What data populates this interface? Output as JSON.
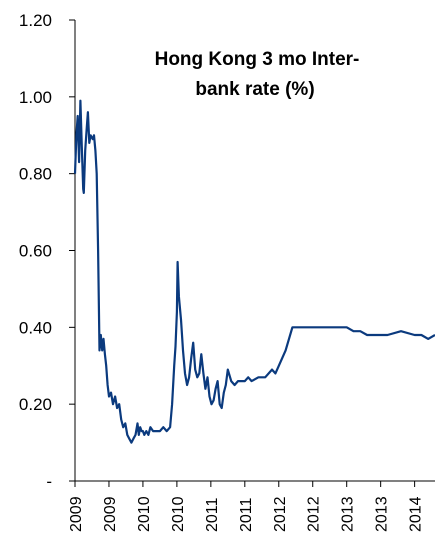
{
  "chart_data": {
    "type": "line",
    "title": [
      "Hong Kong 3 mo Inter-",
      "bank rate (%)"
    ],
    "ylim": [
      0,
      1.2
    ],
    "y_ticks": [
      {
        "value": 0,
        "label": "-"
      },
      {
        "value": 0.2,
        "label": "0.20"
      },
      {
        "value": 0.4,
        "label": "0.40"
      },
      {
        "value": 0.6,
        "label": "0.60"
      },
      {
        "value": 0.8,
        "label": "0.80"
      },
      {
        "value": 1.0,
        "label": "1.00"
      },
      {
        "value": 1.2,
        "label": "1.20"
      }
    ],
    "xlim": [
      2009.0,
      2014.3
    ],
    "x_ticks": [
      {
        "value": 2009.0,
        "label": "2009"
      },
      {
        "value": 2009.5,
        "label": "2009"
      },
      {
        "value": 2010.0,
        "label": "2010"
      },
      {
        "value": 2010.5,
        "label": "2010"
      },
      {
        "value": 2011.0,
        "label": "2011"
      },
      {
        "value": 2011.5,
        "label": "2011"
      },
      {
        "value": 2012.0,
        "label": "2012"
      },
      {
        "value": 2012.5,
        "label": "2012"
      },
      {
        "value": 2013.0,
        "label": "2013"
      },
      {
        "value": 2013.5,
        "label": "2013"
      },
      {
        "value": 2014.0,
        "label": "2014"
      }
    ],
    "grid": false,
    "color": "#0b3a7e",
    "series": [
      {
        "x": [
          2009.0,
          2009.02,
          2009.04,
          2009.06,
          2009.08,
          2009.1,
          2009.12,
          2009.13,
          2009.15,
          2009.17,
          2009.19,
          2009.21,
          2009.23,
          2009.26,
          2009.28,
          2009.3,
          2009.32,
          2009.34,
          2009.36,
          2009.38,
          2009.4,
          2009.42,
          2009.44,
          2009.46,
          2009.48,
          2009.5,
          2009.53,
          2009.56,
          2009.59,
          2009.62,
          2009.65,
          2009.68,
          2009.71,
          2009.74,
          2009.77,
          2009.8,
          2009.83,
          2009.86,
          2009.89,
          2009.92,
          2009.94,
          2009.96,
          2009.98,
          2010.0,
          2010.02,
          2010.05,
          2010.08,
          2010.11,
          2010.15,
          2010.2,
          2010.25,
          2010.3,
          2010.35,
          2010.4,
          2010.43,
          2010.46,
          2010.48,
          2010.5,
          2010.51,
          2010.53,
          2010.56,
          2010.59,
          2010.62,
          2010.65,
          2010.68,
          2010.71,
          2010.74,
          2010.77,
          2010.8,
          2010.83,
          2010.86,
          2010.89,
          2010.92,
          2010.95,
          2010.98,
          2011.01,
          2011.04,
          2011.07,
          2011.1,
          2011.13,
          2011.16,
          2011.19,
          2011.22,
          2011.25,
          2011.3,
          2011.35,
          2011.4,
          2011.45,
          2011.5,
          2011.55,
          2011.6,
          2011.7,
          2011.8,
          2011.9,
          2011.95,
          2012.0,
          2012.1,
          2012.2,
          2012.4,
          2012.6,
          2012.8,
          2013.0,
          2013.1,
          2013.2,
          2013.3,
          2013.4,
          2013.6,
          2013.8,
          2014.0,
          2014.1,
          2014.2,
          2014.3
        ],
        "values": [
          0.8,
          0.9,
          0.95,
          0.83,
          0.99,
          0.87,
          0.76,
          0.75,
          0.86,
          0.91,
          0.96,
          0.88,
          0.9,
          0.89,
          0.9,
          0.86,
          0.8,
          0.6,
          0.34,
          0.38,
          0.34,
          0.37,
          0.33,
          0.3,
          0.25,
          0.22,
          0.23,
          0.2,
          0.22,
          0.19,
          0.2,
          0.16,
          0.14,
          0.15,
          0.12,
          0.11,
          0.1,
          0.11,
          0.12,
          0.15,
          0.12,
          0.14,
          0.13,
          0.13,
          0.12,
          0.13,
          0.12,
          0.14,
          0.13,
          0.13,
          0.13,
          0.14,
          0.13,
          0.14,
          0.2,
          0.3,
          0.35,
          0.44,
          0.57,
          0.48,
          0.42,
          0.34,
          0.28,
          0.25,
          0.27,
          0.32,
          0.36,
          0.29,
          0.27,
          0.28,
          0.33,
          0.28,
          0.24,
          0.27,
          0.22,
          0.2,
          0.21,
          0.24,
          0.26,
          0.2,
          0.19,
          0.23,
          0.25,
          0.29,
          0.26,
          0.25,
          0.26,
          0.26,
          0.26,
          0.27,
          0.26,
          0.27,
          0.27,
          0.29,
          0.28,
          0.3,
          0.34,
          0.4,
          0.4,
          0.4,
          0.4,
          0.4,
          0.39,
          0.39,
          0.38,
          0.38,
          0.38,
          0.39,
          0.38,
          0.38,
          0.37,
          0.38
        ]
      }
    ]
  }
}
